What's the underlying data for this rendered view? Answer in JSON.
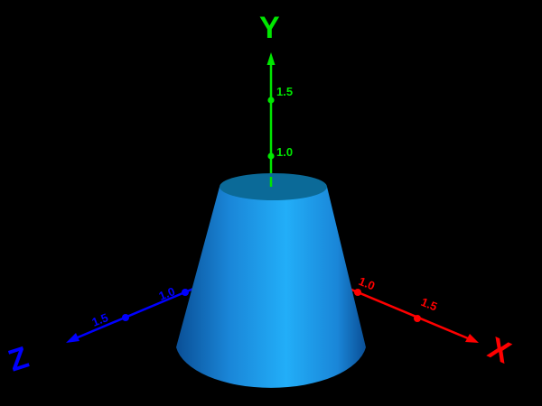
{
  "scene": {
    "background": "#000000",
    "cone": {
      "colors": {
        "edge": "#0a4f96",
        "mid": "#1a86d8",
        "highlight": "#22aef8",
        "top": "#0b6a98"
      }
    },
    "axes": {
      "y": {
        "label": "Y",
        "color": "#00e600",
        "ticks": [
          "1.0",
          "1.5"
        ]
      },
      "x": {
        "label": "X",
        "color": "#ff0000",
        "ticks": [
          "1.0",
          "1.5"
        ]
      },
      "z": {
        "label": "Z",
        "color": "#0000ff",
        "ticks": [
          "1.0",
          "1.5"
        ]
      }
    }
  }
}
